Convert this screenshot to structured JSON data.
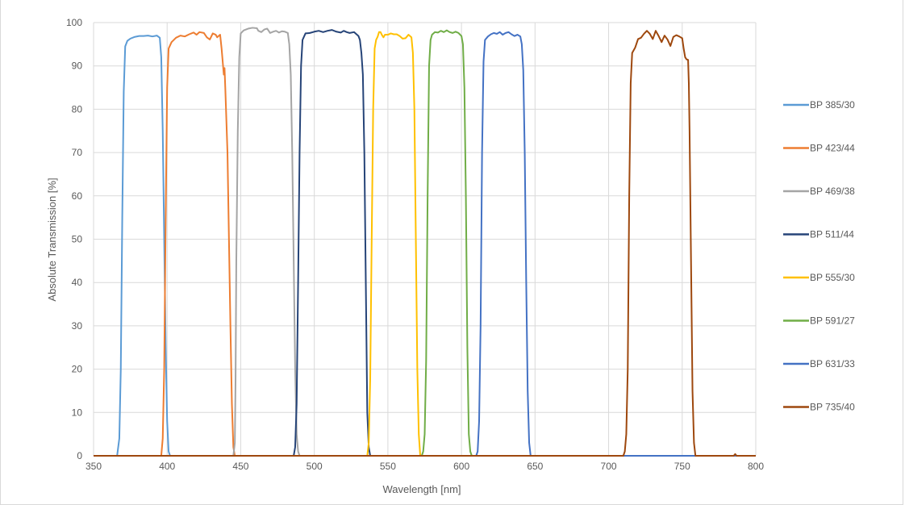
{
  "chart_data": {
    "type": "line",
    "title": "",
    "xlabel": "Wavelength [nm]",
    "ylabel": "Absolute Transmission [%]",
    "xlim": [
      350,
      800
    ],
    "ylim": [
      0,
      100
    ],
    "x_ticks": [
      350,
      400,
      450,
      500,
      550,
      600,
      650,
      700,
      750,
      800
    ],
    "y_ticks": [
      0,
      10,
      20,
      30,
      40,
      50,
      60,
      70,
      80,
      90,
      100
    ],
    "grid": "vertical and horizontal major gridlines",
    "legend_position": "right",
    "series": [
      {
        "name": "BP 385/30",
        "color": "#5b9bd5",
        "points": [
          [
            350,
            0
          ],
          [
            366,
            0
          ],
          [
            367.5,
            4
          ],
          [
            368.5,
            20
          ],
          [
            369.5,
            55
          ],
          [
            370.5,
            84
          ],
          [
            371.5,
            94.5
          ],
          [
            373,
            95.8
          ],
          [
            375,
            96.3
          ],
          [
            378,
            96.7
          ],
          [
            381,
            96.9
          ],
          [
            384,
            96.9
          ],
          [
            387,
            97
          ],
          [
            390,
            96.8
          ],
          [
            393,
            97
          ],
          [
            395,
            96.5
          ],
          [
            396,
            92
          ],
          [
            397,
            75
          ],
          [
            398,
            50
          ],
          [
            399,
            25
          ],
          [
            400,
            8
          ],
          [
            401,
            1
          ],
          [
            402,
            0
          ],
          [
            800,
            0
          ]
        ]
      },
      {
        "name": "BP 423/44",
        "color": "#ed7d31",
        "points": [
          [
            350,
            0
          ],
          [
            396,
            0
          ],
          [
            397,
            4
          ],
          [
            398,
            20
          ],
          [
            399,
            55
          ],
          [
            400,
            85
          ],
          [
            401,
            94
          ],
          [
            403,
            95.5
          ],
          [
            406,
            96.5
          ],
          [
            409,
            97
          ],
          [
            412,
            96.8
          ],
          [
            415,
            97.3
          ],
          [
            418,
            97.7
          ],
          [
            420,
            97.2
          ],
          [
            422,
            97.8
          ],
          [
            425,
            97.6
          ],
          [
            427,
            96.6
          ],
          [
            429,
            96.1
          ],
          [
            431,
            97.5
          ],
          [
            433,
            97.2
          ],
          [
            434,
            96.6
          ],
          [
            436,
            97.2
          ],
          [
            437,
            94
          ],
          [
            438,
            90
          ],
          [
            438.5,
            88
          ],
          [
            439,
            89.5
          ],
          [
            439.5,
            85
          ],
          [
            441,
            70
          ],
          [
            442,
            50
          ],
          [
            443,
            30
          ],
          [
            444,
            12
          ],
          [
            445,
            2
          ],
          [
            446,
            0
          ],
          [
            800,
            0
          ]
        ]
      },
      {
        "name": "BP 469/38",
        "color": "#a5a5a5",
        "points": [
          [
            350,
            0
          ],
          [
            445,
            0
          ],
          [
            446,
            3
          ],
          [
            446.5,
            18
          ],
          [
            447,
            45
          ],
          [
            448,
            75
          ],
          [
            449,
            92
          ],
          [
            450,
            97.5
          ],
          [
            452,
            98.2
          ],
          [
            455,
            98.6
          ],
          [
            458,
            98.8
          ],
          [
            461,
            98.7
          ],
          [
            462,
            98.1
          ],
          [
            464,
            97.8
          ],
          [
            466,
            98.4
          ],
          [
            468,
            98.6
          ],
          [
            470,
            97.6
          ],
          [
            472,
            97.9
          ],
          [
            474,
            98.1
          ],
          [
            476,
            97.7
          ],
          [
            478,
            98
          ],
          [
            480,
            97.9
          ],
          [
            482,
            97.6
          ],
          [
            483,
            95
          ],
          [
            484,
            88
          ],
          [
            485,
            70
          ],
          [
            486,
            45
          ],
          [
            487,
            20
          ],
          [
            488,
            5
          ],
          [
            489,
            1
          ],
          [
            490,
            0
          ],
          [
            800,
            0
          ]
        ]
      },
      {
        "name": "BP 511/44",
        "color": "#264478",
        "points": [
          [
            350,
            0
          ],
          [
            486,
            0
          ],
          [
            487,
            2
          ],
          [
            488,
            12
          ],
          [
            489,
            40
          ],
          [
            490,
            70
          ],
          [
            491,
            90
          ],
          [
            492,
            96
          ],
          [
            494,
            97.5
          ],
          [
            497,
            97.6
          ],
          [
            500,
            97.9
          ],
          [
            503,
            98.1
          ],
          [
            506,
            97.8
          ],
          [
            509,
            98.1
          ],
          [
            512,
            98.3
          ],
          [
            515,
            97.9
          ],
          [
            518,
            97.7
          ],
          [
            520,
            98.1
          ],
          [
            522,
            97.8
          ],
          [
            524,
            97.6
          ],
          [
            527,
            97.8
          ],
          [
            530,
            96.9
          ],
          [
            531,
            96
          ],
          [
            532,
            93
          ],
          [
            533,
            88
          ],
          [
            534,
            70
          ],
          [
            535,
            40
          ],
          [
            536,
            10
          ],
          [
            537,
            2
          ],
          [
            538,
            0
          ],
          [
            800,
            0
          ]
        ]
      },
      {
        "name": "BP 555/30",
        "color": "#ffc000",
        "points": [
          [
            350,
            0
          ],
          [
            536,
            0
          ],
          [
            537,
            3
          ],
          [
            538,
            18
          ],
          [
            539,
            50
          ],
          [
            540,
            80
          ],
          [
            541,
            94
          ],
          [
            542,
            96
          ],
          [
            543,
            96.7
          ],
          [
            544,
            97.8
          ],
          [
            545,
            97.8
          ],
          [
            546,
            97.1
          ],
          [
            547,
            96.6
          ],
          [
            548,
            97.2
          ],
          [
            550,
            97.2
          ],
          [
            552,
            97.5
          ],
          [
            554,
            97.3
          ],
          [
            556,
            97.3
          ],
          [
            558,
            96.9
          ],
          [
            560,
            96.3
          ],
          [
            562,
            96.4
          ],
          [
            564,
            97.2
          ],
          [
            566,
            96.6
          ],
          [
            567,
            93
          ],
          [
            568,
            80
          ],
          [
            569,
            50
          ],
          [
            570,
            20
          ],
          [
            571,
            5
          ],
          [
            572,
            0
          ],
          [
            800,
            0
          ]
        ]
      },
      {
        "name": "BP 591/27",
        "color": "#70ad47",
        "points": [
          [
            350,
            0
          ],
          [
            573,
            0
          ],
          [
            574,
            1
          ],
          [
            575,
            5
          ],
          [
            576,
            22
          ],
          [
            577,
            60
          ],
          [
            578,
            90
          ],
          [
            579,
            96
          ],
          [
            580,
            97.2
          ],
          [
            582,
            97.8
          ],
          [
            584,
            97.7
          ],
          [
            586,
            98.1
          ],
          [
            588,
            97.8
          ],
          [
            590,
            98.2
          ],
          [
            592,
            97.8
          ],
          [
            594,
            97.6
          ],
          [
            596,
            97.9
          ],
          [
            598,
            97.6
          ],
          [
            600,
            96.9
          ],
          [
            601,
            95
          ],
          [
            602,
            85
          ],
          [
            603,
            60
          ],
          [
            604,
            25
          ],
          [
            605,
            5
          ],
          [
            606,
            1
          ],
          [
            607,
            0
          ],
          [
            800,
            0
          ]
        ]
      },
      {
        "name": "BP 631/33",
        "color": "#4472c4",
        "points": [
          [
            350,
            0
          ],
          [
            610,
            0
          ],
          [
            611,
            1
          ],
          [
            612,
            8
          ],
          [
            613,
            30
          ],
          [
            614,
            70
          ],
          [
            615,
            91
          ],
          [
            616,
            96
          ],
          [
            618,
            96.8
          ],
          [
            620,
            97.3
          ],
          [
            622,
            97.6
          ],
          [
            624,
            97.4
          ],
          [
            626,
            97.8
          ],
          [
            628,
            97.2
          ],
          [
            630,
            97.6
          ],
          [
            632,
            97.8
          ],
          [
            634,
            97.3
          ],
          [
            636,
            96.9
          ],
          [
            638,
            97.2
          ],
          [
            640,
            96.8
          ],
          [
            641,
            95
          ],
          [
            642,
            89
          ],
          [
            643,
            70
          ],
          [
            644,
            40
          ],
          [
            645,
            15
          ],
          [
            646,
            3
          ],
          [
            647,
            0
          ],
          [
            800,
            0
          ]
        ]
      },
      {
        "name": "BP 735/40",
        "color": "#9e480e",
        "points": [
          [
            350,
            0
          ],
          [
            710,
            0
          ],
          [
            711,
            1
          ],
          [
            712,
            5
          ],
          [
            713,
            20
          ],
          [
            714,
            60
          ],
          [
            715,
            86
          ],
          [
            716,
            93
          ],
          [
            718,
            94.2
          ],
          [
            720,
            96.2
          ],
          [
            722,
            96.5
          ],
          [
            724,
            97.4
          ],
          [
            726,
            98.1
          ],
          [
            728,
            97.4
          ],
          [
            730,
            96.2
          ],
          [
            732,
            98.1
          ],
          [
            734,
            96.9
          ],
          [
            736,
            95.5
          ],
          [
            738,
            97
          ],
          [
            740,
            96.1
          ],
          [
            742,
            94.6
          ],
          [
            744,
            96.7
          ],
          [
            746,
            97.1
          ],
          [
            748,
            96.8
          ],
          [
            750,
            96.4
          ],
          [
            751,
            94
          ],
          [
            752,
            92
          ],
          [
            753,
            91.5
          ],
          [
            754,
            91.4
          ],
          [
            754.5,
            86
          ],
          [
            755,
            75
          ],
          [
            756,
            45
          ],
          [
            757,
            15
          ],
          [
            758,
            3
          ],
          [
            759,
            0
          ],
          [
            785,
            0
          ],
          [
            786,
            0.4
          ],
          [
            787,
            0
          ],
          [
            800,
            0
          ]
        ]
      }
    ]
  }
}
